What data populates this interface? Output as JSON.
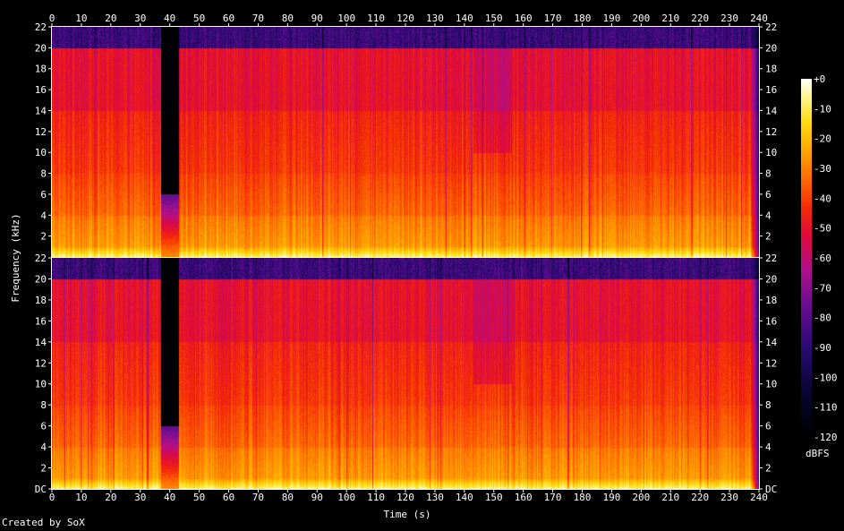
{
  "chart_data": {
    "type": "heatmap",
    "xlabel": "Time (s)",
    "ylabel": "Frequency (kHz)",
    "xlim": [
      0,
      240
    ],
    "x_ticks": [
      0,
      10,
      20,
      30,
      40,
      50,
      60,
      70,
      80,
      90,
      100,
      110,
      120,
      130,
      140,
      150,
      160,
      170,
      180,
      190,
      200,
      210,
      220,
      230,
      240
    ],
    "channels": [
      {
        "name": "top",
        "ylim": [
          0,
          22
        ],
        "y_tick_labels": [
          "22",
          "20",
          "18",
          "16",
          "14",
          "12",
          "10",
          "8",
          "6",
          "4",
          "2"
        ],
        "y_tick_values": [
          22,
          20,
          18,
          16,
          14,
          12,
          10,
          8,
          6,
          4,
          2
        ]
      },
      {
        "name": "bottom",
        "ylim": [
          0,
          22
        ],
        "y_tick_labels": [
          "22",
          "20",
          "18",
          "16",
          "14",
          "12",
          "10",
          "8",
          "6",
          "4",
          "2",
          "DC"
        ],
        "y_tick_values": [
          22,
          20,
          18,
          16,
          14,
          12,
          10,
          8,
          6,
          4,
          2,
          0
        ]
      }
    ],
    "colorbar": {
      "label": "dBFS",
      "range": [
        -120,
        0
      ],
      "tick_labels": [
        "+0",
        "-10",
        "-20",
        "-30",
        "-40",
        "-50",
        "-60",
        "-70",
        "-80",
        "-90",
        "-100",
        "-110",
        "-120"
      ],
      "tick_values": [
        0,
        -10,
        -20,
        -30,
        -40,
        -50,
        -60,
        -70,
        -80,
        -90,
        -100,
        -110,
        -120
      ]
    },
    "features": {
      "silent_gap_seconds": [
        37,
        43
      ],
      "fade_out_start_seconds": 237,
      "dropout_band_seconds": [
        143,
        156
      ]
    }
  },
  "credit": "Created by SoX"
}
